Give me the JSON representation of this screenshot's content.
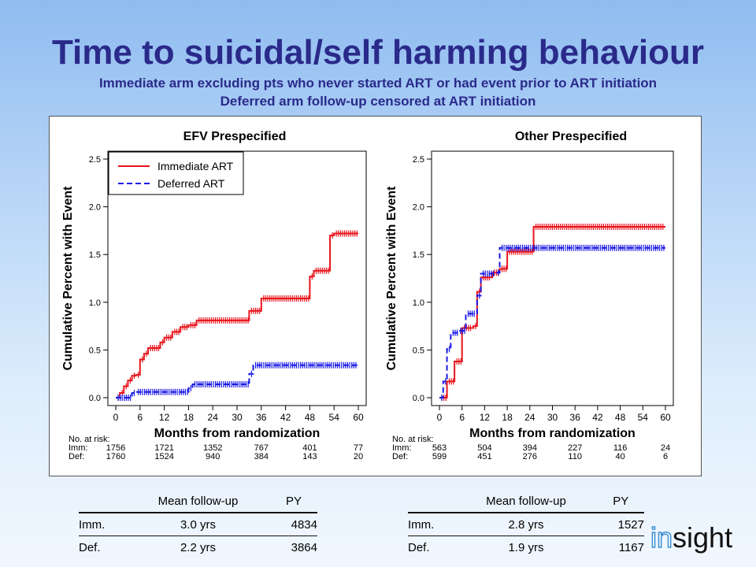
{
  "title": "Time to suicidal/self harming behaviour",
  "subtitle1": "Immediate arm excluding pts who never started ART or had event prior to ART initiation",
  "subtitle2": "Deferred arm follow-up censored at ART initiation",
  "colors": {
    "immediate": "#e8141c",
    "deferred": "#1a1ae6",
    "title": "#2a2a8a"
  },
  "risk": {
    "label": "No. at risk:",
    "imm_label": "Imm:",
    "def_label": "Def:"
  },
  "chart_data": [
    {
      "type": "line",
      "title": "EFV Prespecified",
      "xlabel": "Months from randomization",
      "ylabel": "Cumulative Percent with Event",
      "xlim": [
        0,
        60
      ],
      "ylim": [
        0,
        2.5
      ],
      "xticks": [
        "0",
        "6",
        "12",
        "18",
        "24",
        "30",
        "36",
        "42",
        "48",
        "54",
        "60"
      ],
      "yticks": [
        "0.0",
        "0.5",
        "1.0",
        "1.5",
        "2.0",
        "2.5"
      ],
      "legend": "top-left",
      "series": [
        {
          "name": "Immediate ART",
          "style": "solid",
          "x": [
            0,
            1,
            2,
            3,
            4,
            5,
            6,
            7,
            8,
            11,
            12,
            14,
            16,
            18,
            20,
            33,
            36,
            48,
            49,
            53,
            54,
            60
          ],
          "y": [
            0,
            0.05,
            0.12,
            0.18,
            0.23,
            0.24,
            0.4,
            0.46,
            0.52,
            0.58,
            0.63,
            0.69,
            0.74,
            0.76,
            0.81,
            0.91,
            1.04,
            1.27,
            1.33,
            1.7,
            1.72,
            1.72
          ]
        },
        {
          "name": "Deferred ART",
          "style": "dashed",
          "x": [
            0,
            4,
            5,
            18,
            19,
            33,
            34,
            60
          ],
          "y": [
            0,
            0.05,
            0.06,
            0.1,
            0.14,
            0.25,
            0.34,
            0.34
          ]
        }
      ],
      "at_risk": {
        "x": [
          0,
          12,
          24,
          36,
          48,
          60
        ],
        "imm": [
          "1756",
          "1721",
          "1352",
          "767",
          "401",
          "77"
        ],
        "def": [
          "1760",
          "1524",
          "940",
          "384",
          "143",
          "20"
        ]
      }
    },
    {
      "type": "line",
      "title": "Other Prespecified",
      "xlabel": "Months from randomization",
      "ylabel": "Cumulative Percent with Event",
      "xlim": [
        0,
        60
      ],
      "ylim": [
        0,
        2.5
      ],
      "xticks": [
        "0",
        "6",
        "12",
        "18",
        "24",
        "30",
        "36",
        "42",
        "48",
        "54",
        "60"
      ],
      "yticks": [
        "0.0",
        "0.5",
        "1.0",
        "1.5",
        "2.0",
        "2.5"
      ],
      "series": [
        {
          "name": "Immediate ART",
          "style": "solid",
          "x": [
            0,
            2,
            4,
            6,
            9,
            10,
            11,
            14,
            16,
            18,
            25,
            60
          ],
          "y": [
            0,
            0.17,
            0.38,
            0.73,
            0.75,
            1.11,
            1.26,
            1.31,
            1.35,
            1.53,
            1.79,
            1.79
          ]
        },
        {
          "name": "Deferred ART",
          "style": "dashed",
          "x": [
            0,
            1,
            2,
            3,
            5,
            7,
            10,
            11,
            15,
            16,
            60
          ],
          "y": [
            0,
            0.17,
            0.51,
            0.68,
            0.7,
            0.88,
            1.07,
            1.3,
            1.31,
            1.57,
            1.57
          ]
        }
      ],
      "at_risk": {
        "x": [
          0,
          12,
          24,
          36,
          48,
          60
        ],
        "imm": [
          "563",
          "504",
          "394",
          "227",
          "116",
          "24"
        ],
        "def": [
          "599",
          "451",
          "276",
          "110",
          "40",
          "6"
        ]
      }
    }
  ],
  "tables": [
    {
      "headers": [
        "",
        "Mean follow-up",
        "PY"
      ],
      "rows": [
        [
          "Imm.",
          "3.0 yrs",
          "4834"
        ],
        [
          "Def.",
          "2.2 yrs",
          "3864"
        ]
      ]
    },
    {
      "headers": [
        "",
        "Mean follow-up",
        "PY"
      ],
      "rows": [
        [
          "Imm.",
          "2.8 yrs",
          "1527"
        ],
        [
          "Def.",
          "1.9 yrs",
          "1167"
        ]
      ]
    }
  ],
  "logo": {
    "part1": "in",
    "part2": "sight"
  }
}
